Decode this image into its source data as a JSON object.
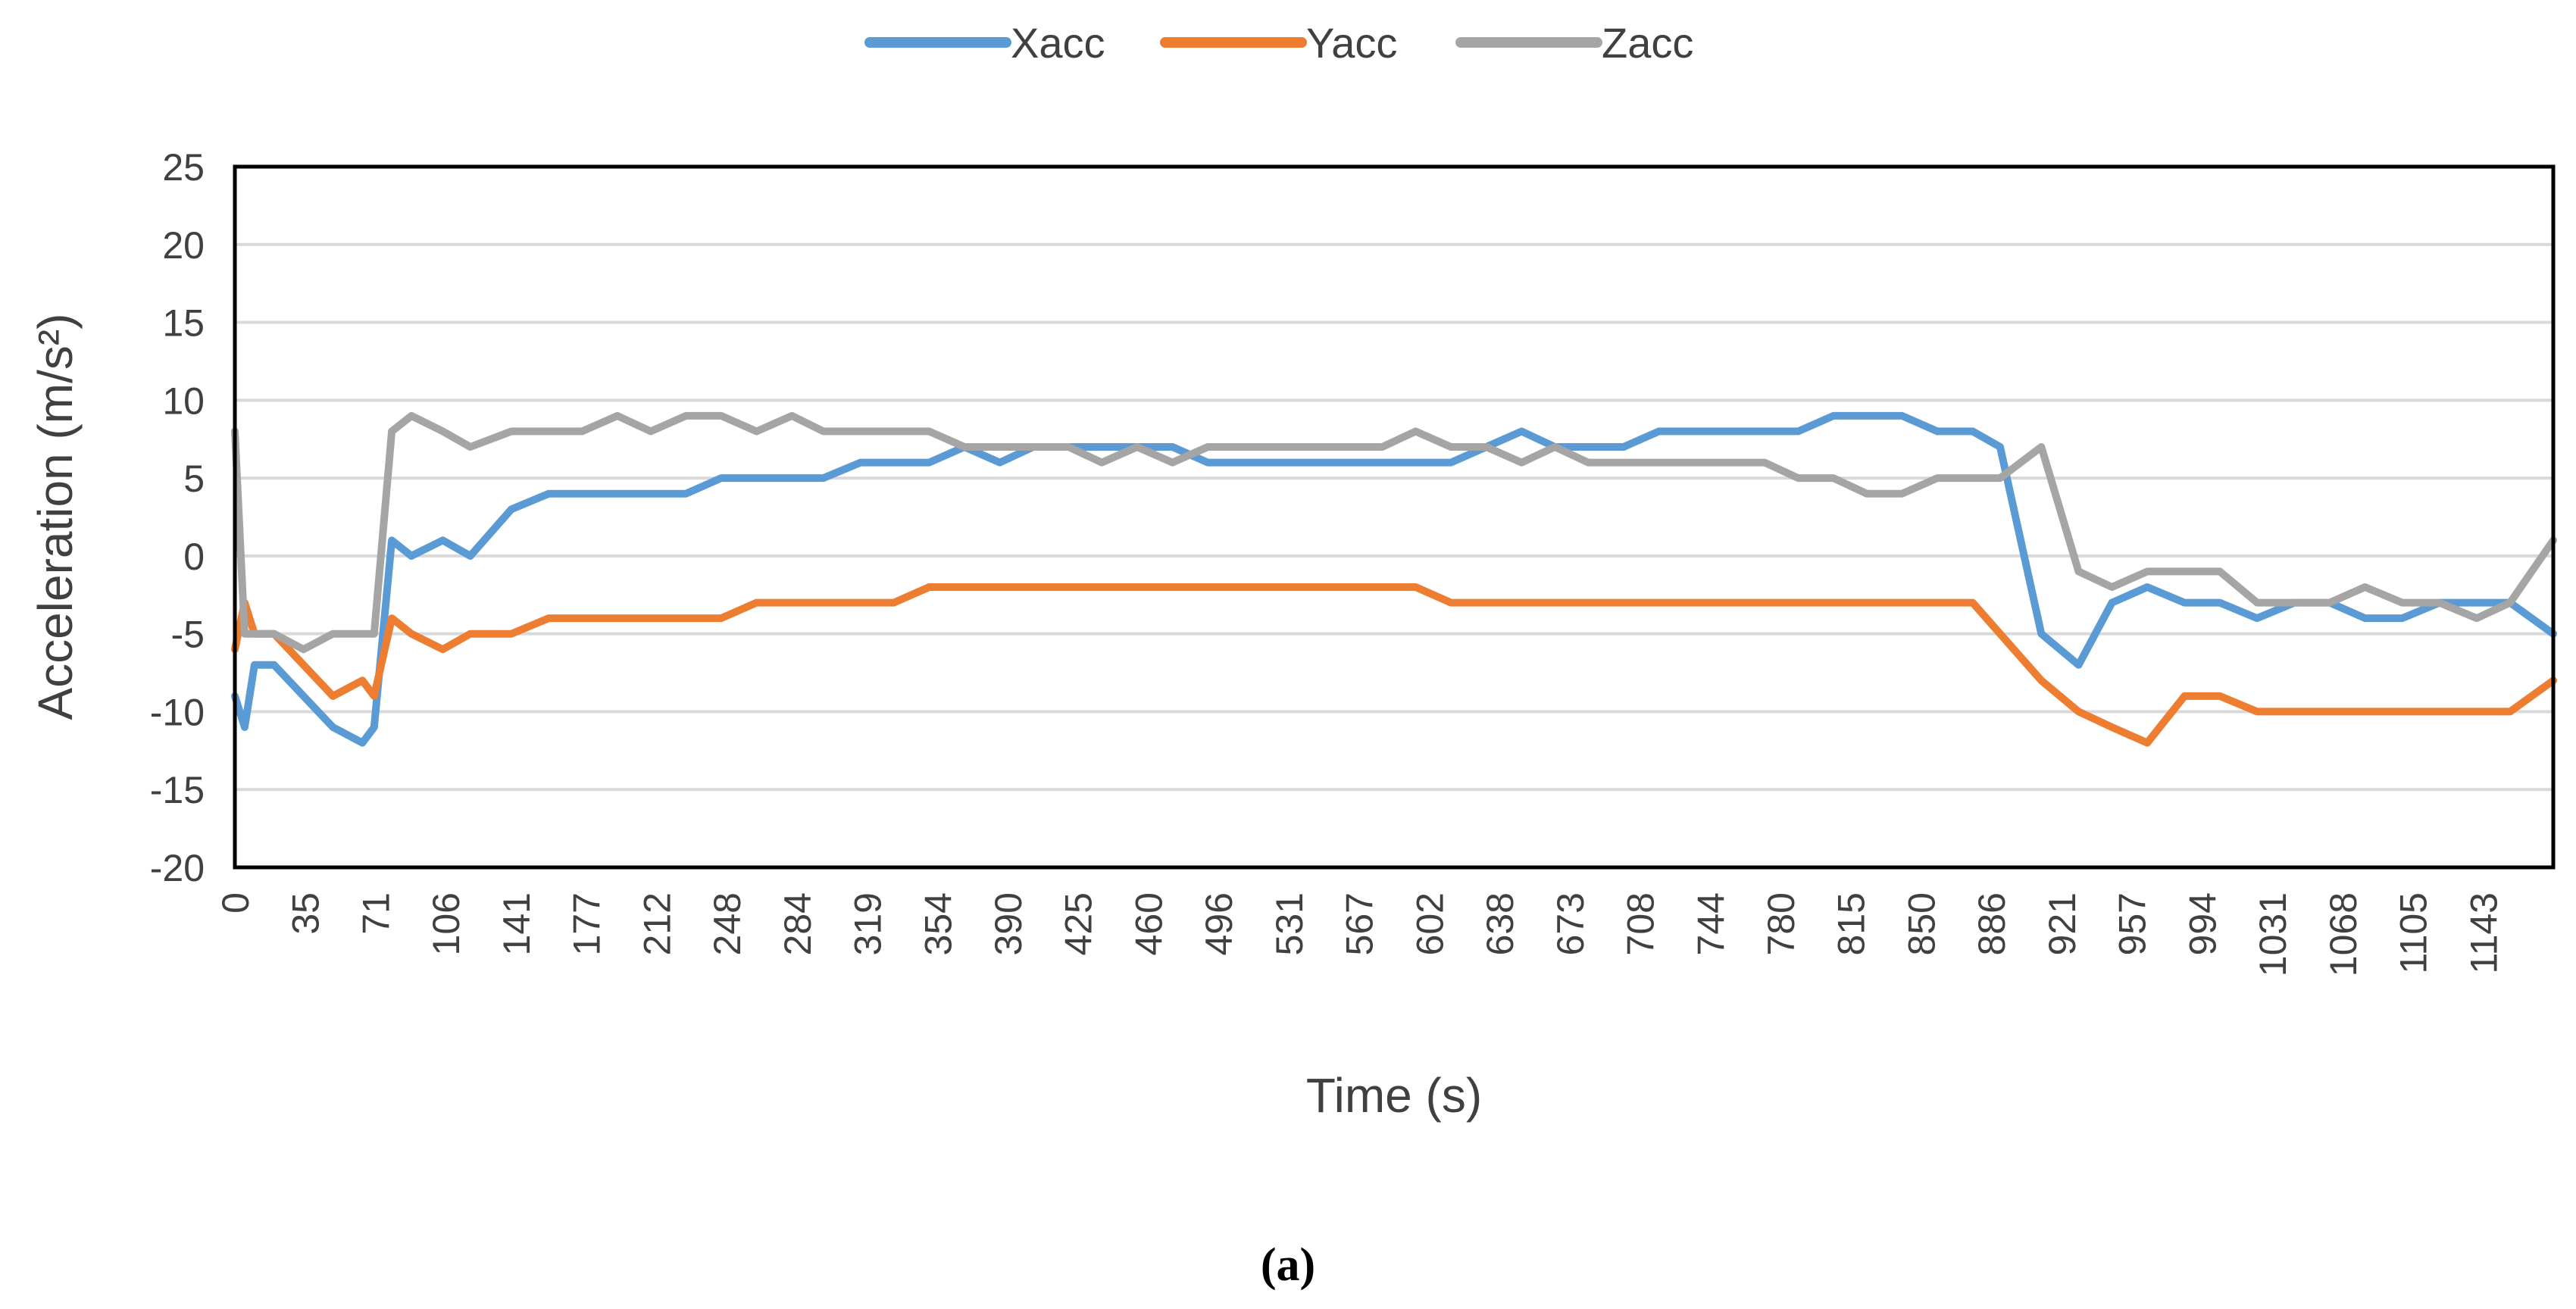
{
  "caption": "(a)",
  "chart_data": {
    "type": "line",
    "xlabel": "Time (s)",
    "ylabel": "Acceleration (m/s²)",
    "ylim": [
      -20,
      25
    ],
    "yticks": [
      -20,
      -15,
      -10,
      -5,
      0,
      5,
      10,
      15,
      20,
      25
    ],
    "xlim": [
      0,
      1182
    ],
    "x_tick_labels": [
      "0",
      "35",
      "71",
      "106",
      "141",
      "177",
      "212",
      "248",
      "284",
      "319",
      "354",
      "390",
      "425",
      "460",
      "496",
      "531",
      "567",
      "602",
      "638",
      "673",
      "708",
      "744",
      "780",
      "815",
      "850",
      "886",
      "921",
      "957",
      "994",
      "1031",
      "1068",
      "1105",
      "1143"
    ],
    "grid": true,
    "legend_position": "top-center",
    "colors": {
      "Xacc": "#5B9BD5",
      "Yacc": "#ED7D31",
      "Zacc": "#A5A5A5"
    },
    "series": [
      {
        "name": "Xacc",
        "x": [
          0,
          5,
          10,
          20,
          35,
          50,
          65,
          71,
          80,
          90,
          106,
          120,
          141,
          160,
          177,
          195,
          212,
          230,
          248,
          266,
          284,
          300,
          319,
          336,
          354,
          372,
          390,
          407,
          425,
          442,
          460,
          478,
          496,
          514,
          531,
          550,
          567,
          585,
          602,
          620,
          638,
          656,
          673,
          690,
          708,
          726,
          744,
          762,
          780,
          797,
          815,
          832,
          850,
          868,
          886,
          900,
          921,
          940,
          957,
          975,
          994,
          1012,
          1031,
          1050,
          1068,
          1086,
          1105,
          1124,
          1143,
          1160,
          1182
        ],
        "values": [
          -9,
          -11,
          -7,
          -7,
          -9,
          -11,
          -12,
          -11,
          1,
          0,
          1,
          0,
          3,
          4,
          4,
          4,
          4,
          4,
          5,
          5,
          5,
          5,
          6,
          6,
          6,
          7,
          6,
          7,
          7,
          7,
          7,
          7,
          6,
          6,
          6,
          6,
          6,
          6,
          6,
          6,
          7,
          8,
          7,
          7,
          7,
          8,
          8,
          8,
          8,
          8,
          9,
          9,
          9,
          8,
          8,
          7,
          -5,
          -7,
          -3,
          -2,
          -3,
          -3,
          -4,
          -3,
          -3,
          -4,
          -4,
          -3,
          -3,
          -3,
          -5
        ]
      },
      {
        "name": "Yacc",
        "x": [
          0,
          5,
          10,
          20,
          35,
          50,
          65,
          71,
          80,
          90,
          106,
          120,
          141,
          160,
          177,
          195,
          212,
          230,
          248,
          266,
          284,
          300,
          319,
          336,
          354,
          372,
          390,
          407,
          425,
          442,
          460,
          478,
          496,
          514,
          531,
          550,
          567,
          585,
          602,
          620,
          638,
          656,
          673,
          690,
          708,
          726,
          744,
          762,
          780,
          797,
          815,
          832,
          850,
          868,
          886,
          900,
          921,
          940,
          957,
          975,
          994,
          1012,
          1031,
          1050,
          1068,
          1086,
          1105,
          1124,
          1143,
          1160,
          1182
        ],
        "values": [
          -6,
          -3,
          -5,
          -5,
          -7,
          -9,
          -8,
          -9,
          -4,
          -5,
          -6,
          -5,
          -5,
          -4,
          -4,
          -4,
          -4,
          -4,
          -4,
          -3,
          -3,
          -3,
          -3,
          -3,
          -2,
          -2,
          -2,
          -2,
          -2,
          -2,
          -2,
          -2,
          -2,
          -2,
          -2,
          -2,
          -2,
          -2,
          -2,
          -3,
          -3,
          -3,
          -3,
          -3,
          -3,
          -3,
          -3,
          -3,
          -3,
          -3,
          -3,
          -3,
          -3,
          -3,
          -3,
          -5,
          -8,
          -10,
          -11,
          -12,
          -9,
          -9,
          -10,
          -10,
          -10,
          -10,
          -10,
          -10,
          -10,
          -10,
          -8
        ]
      },
      {
        "name": "Zacc",
        "x": [
          0,
          5,
          10,
          20,
          35,
          50,
          65,
          71,
          80,
          90,
          106,
          120,
          141,
          160,
          177,
          195,
          212,
          230,
          248,
          266,
          284,
          300,
          319,
          336,
          354,
          372,
          390,
          407,
          425,
          442,
          460,
          478,
          496,
          514,
          531,
          550,
          567,
          585,
          602,
          620,
          638,
          656,
          673,
          690,
          708,
          726,
          744,
          762,
          780,
          797,
          815,
          832,
          850,
          868,
          886,
          900,
          921,
          940,
          957,
          975,
          994,
          1012,
          1031,
          1050,
          1068,
          1086,
          1105,
          1124,
          1143,
          1160,
          1182
        ],
        "values": [
          8,
          -5,
          -5,
          -5,
          -6,
          -5,
          -5,
          -5,
          8,
          9,
          8,
          7,
          8,
          8,
          8,
          9,
          8,
          9,
          9,
          8,
          9,
          8,
          8,
          8,
          8,
          7,
          7,
          7,
          7,
          6,
          7,
          6,
          7,
          7,
          7,
          7,
          7,
          7,
          8,
          7,
          7,
          6,
          7,
          6,
          6,
          6,
          6,
          6,
          6,
          5,
          5,
          4,
          4,
          5,
          5,
          5,
          7,
          -1,
          -2,
          -1,
          -1,
          -1,
          -3,
          -3,
          -3,
          -2,
          -3,
          -3,
          -4,
          -3,
          1
        ]
      }
    ]
  }
}
